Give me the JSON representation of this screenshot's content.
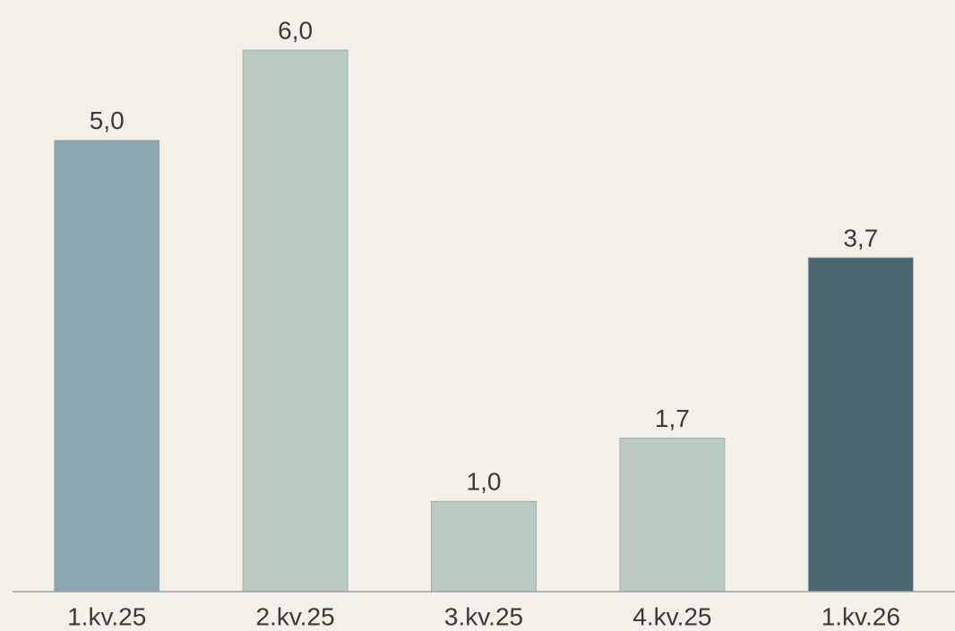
{
  "chart_data": {
    "type": "bar",
    "categories": [
      "1.kv.25",
      "2.kv.25",
      "3.kv.25",
      "4.kv.25",
      "1.kv.26"
    ],
    "values": [
      5.0,
      6.0,
      1.0,
      1.7,
      3.7
    ],
    "value_labels": [
      "5,0",
      "6,0",
      "1,0",
      "1,7",
      "3,7"
    ],
    "colors": [
      "#8aa7b2",
      "#bac9c1",
      "#bac9c1",
      "#bac9c1",
      "#4b6872"
    ]
  }
}
